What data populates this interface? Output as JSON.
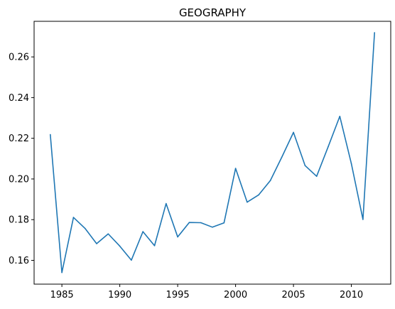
{
  "chart_data": {
    "type": "line",
    "title": "GEOGRAPHY",
    "xlabel": "",
    "ylabel": "",
    "xlim": [
      1982.6,
      2013.4
    ],
    "ylim": [
      0.1483,
      0.2775
    ],
    "x_ticks": [
      1985,
      1990,
      1995,
      2000,
      2005,
      2010
    ],
    "x_tick_labels": [
      "1985",
      "1990",
      "1995",
      "2000",
      "2005",
      "2010"
    ],
    "y_ticks": [
      0.16,
      0.18,
      0.2,
      0.22,
      0.24,
      0.26
    ],
    "y_tick_labels": [
      "0.16",
      "0.18",
      "0.20",
      "0.22",
      "0.24",
      "0.26"
    ],
    "grid": false,
    "series": [
      {
        "color": "#1f77b4",
        "x": [
          1984,
          1985,
          1986,
          1987,
          1988,
          1989,
          1990,
          1991,
          1992,
          1993,
          1994,
          1995,
          1996,
          1997,
          1998,
          1999,
          2000,
          2001,
          2002,
          2003,
          2004,
          2005,
          2006,
          2007,
          2008,
          2009,
          2010,
          2011,
          2012
        ],
        "y": [
          0.2218,
          0.154,
          0.1811,
          0.1757,
          0.1682,
          0.173,
          0.167,
          0.1601,
          0.1741,
          0.1672,
          0.1879,
          0.1715,
          0.1786,
          0.1785,
          0.1763,
          0.1784,
          0.2052,
          0.1886,
          0.1922,
          0.1992,
          0.2108,
          0.2229,
          0.2066,
          0.2013,
          0.2159,
          0.2308,
          0.2075,
          0.1801,
          0.2719
        ]
      }
    ]
  }
}
